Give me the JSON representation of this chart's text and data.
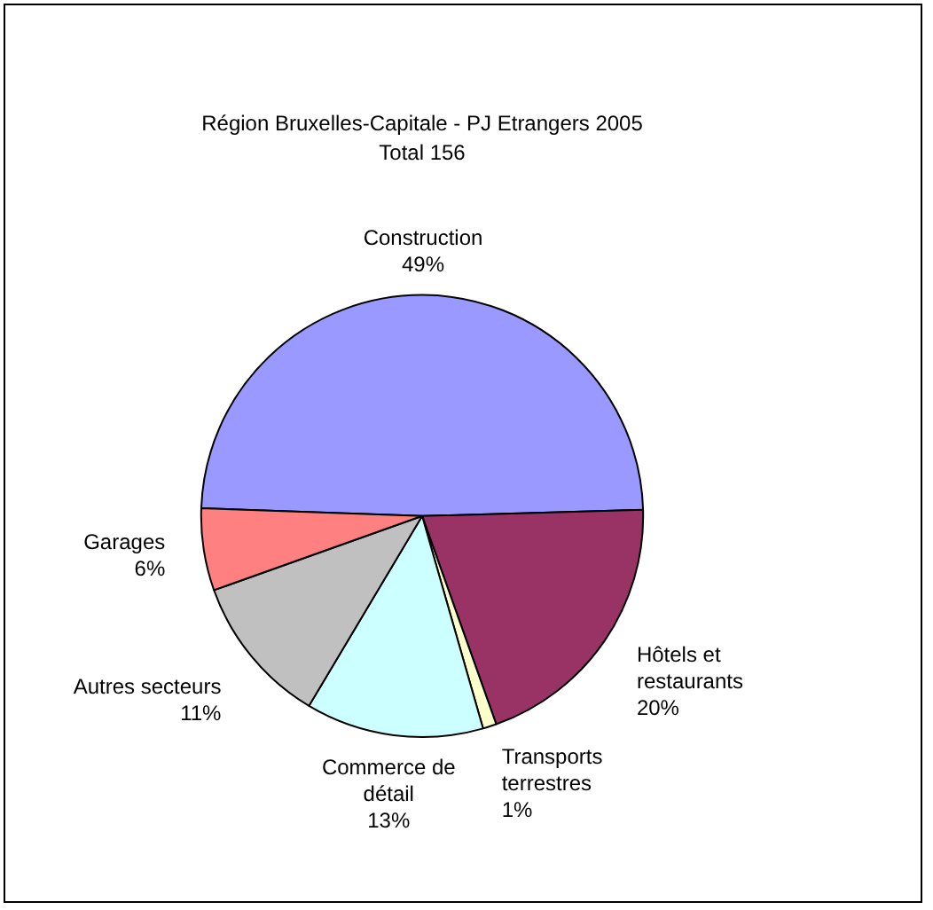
{
  "chart_data": {
    "type": "pie",
    "title": "Région Bruxelles-Capitale - PJ Etrangers 2005",
    "subtitle": "Total 156",
    "categories": [
      "Construction",
      "Hôtels et restaurants",
      "Transports terrestres",
      "Commerce de détail",
      "Autres secteurs",
      "Garages"
    ],
    "values": [
      49,
      20,
      1,
      13,
      11,
      6
    ],
    "colors": [
      "#9999ff",
      "#993366",
      "#ffffcc",
      "#ccffff",
      "#c0c0c0",
      "#ff8080"
    ],
    "value_labels": [
      "49%",
      "20%",
      "1%",
      "13%",
      "11%",
      "6%"
    ],
    "legend": false
  }
}
